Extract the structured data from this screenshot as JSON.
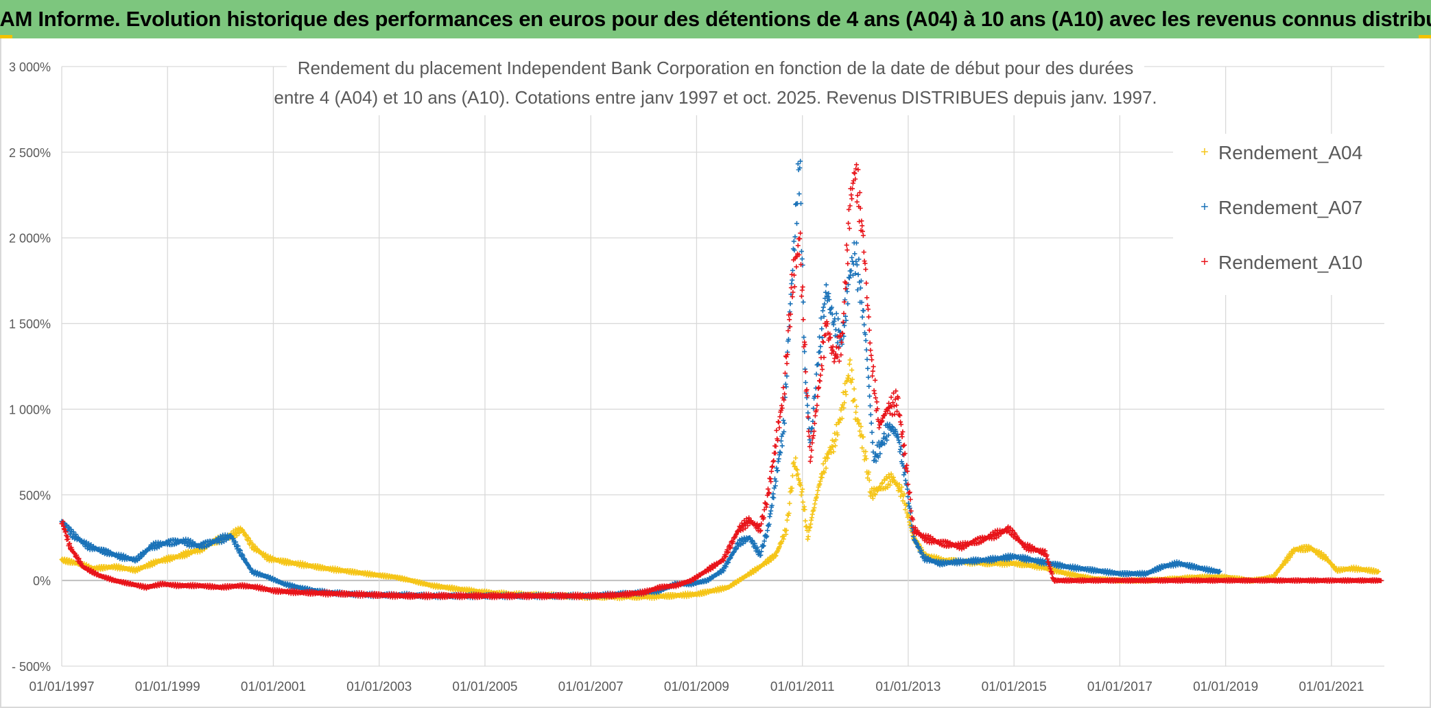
{
  "banner": {
    "title": "ADAM Informe. Evolution historique des performances en euros pour des détentions de 4 ans (A04) à 10 ans (A10) avec les revenus connus distribués"
  },
  "colors": {
    "banner_bg": "#7dc67e",
    "A04": "#f5c518",
    "A07": "#1a72b8",
    "A10": "#e8141a",
    "grid": "#d9d9d9",
    "text": "#595959"
  },
  "chart_data": {
    "type": "scatter",
    "title_lines": [
      "Rendement du placement Independent Bank Corporation en fonction de la date de début pour des durées",
      "entre 4 (A04) et 10 ans (A10). Cotations entre janv 1997 et oct. 2025. Revenus DISTRIBUES depuis janv. 1997."
    ],
    "x_unit": "year",
    "xlim": [
      1997.0,
      2022.0
    ],
    "ylim": [
      -500,
      3000
    ],
    "y_ticks": [
      {
        "value": 3000,
        "label": "3 000%"
      },
      {
        "value": 2500,
        "label": "2 500%"
      },
      {
        "value": 2000,
        "label": "2 000%"
      },
      {
        "value": 1500,
        "label": "1 500%"
      },
      {
        "value": 1000,
        "label": "1 000%"
      },
      {
        "value": 500,
        "label": "500%"
      },
      {
        "value": 0,
        "label": "0%"
      },
      {
        "value": -500,
        "label": "- 500%"
      }
    ],
    "x_ticks": [
      {
        "value": 1997,
        "label": "01/01/1997"
      },
      {
        "value": 1999,
        "label": "01/01/1999"
      },
      {
        "value": 2001,
        "label": "01/01/2001"
      },
      {
        "value": 2003,
        "label": "01/01/2003"
      },
      {
        "value": 2005,
        "label": "01/01/2005"
      },
      {
        "value": 2007,
        "label": "01/01/2007"
      },
      {
        "value": 2009,
        "label": "01/01/2009"
      },
      {
        "value": 2011,
        "label": "01/01/2011"
      },
      {
        "value": 2013,
        "label": "01/01/2013"
      },
      {
        "value": 2015,
        "label": "01/01/2015"
      },
      {
        "value": 2017,
        "label": "01/01/2017"
      },
      {
        "value": 2019,
        "label": "01/01/2019"
      },
      {
        "value": 2021,
        "label": "01/01/2021"
      }
    ],
    "grid": true,
    "legend_position": "top-right",
    "series": [
      {
        "name": "Rendement_A04",
        "marker": "+",
        "points": [
          [
            1997.0,
            120
          ],
          [
            1997.3,
            100
          ],
          [
            1997.6,
            70
          ],
          [
            1998.0,
            80
          ],
          [
            1998.4,
            60
          ],
          [
            1998.8,
            110
          ],
          [
            1999.2,
            140
          ],
          [
            1999.6,
            180
          ],
          [
            1999.9,
            230
          ],
          [
            2000.2,
            260
          ],
          [
            2000.4,
            300
          ],
          [
            2000.6,
            200
          ],
          [
            2000.9,
            130
          ],
          [
            2001.2,
            110
          ],
          [
            2001.6,
            90
          ],
          [
            2002.0,
            70
          ],
          [
            2002.5,
            50
          ],
          [
            2003.0,
            30
          ],
          [
            2003.3,
            20
          ],
          [
            2003.6,
            0
          ],
          [
            2004.0,
            -30
          ],
          [
            2004.5,
            -50
          ],
          [
            2005.0,
            -70
          ],
          [
            2005.5,
            -80
          ],
          [
            2006.0,
            -85
          ],
          [
            2006.5,
            -90
          ],
          [
            2007.0,
            -95
          ],
          [
            2007.5,
            -95
          ],
          [
            2008.0,
            -95
          ],
          [
            2008.5,
            -90
          ],
          [
            2009.0,
            -80
          ],
          [
            2009.3,
            -60
          ],
          [
            2009.6,
            -40
          ],
          [
            2009.9,
            20
          ],
          [
            2010.2,
            80
          ],
          [
            2010.5,
            150
          ],
          [
            2010.7,
            300
          ],
          [
            2010.85,
            700
          ],
          [
            2011.0,
            500
          ],
          [
            2011.1,
            250
          ],
          [
            2011.2,
            400
          ],
          [
            2011.35,
            600
          ],
          [
            2011.5,
            750
          ],
          [
            2011.6,
            800
          ],
          [
            2011.75,
            1000
          ],
          [
            2011.9,
            1250
          ],
          [
            2012.0,
            1000
          ],
          [
            2012.15,
            800
          ],
          [
            2012.3,
            500
          ],
          [
            2012.5,
            550
          ],
          [
            2012.7,
            600
          ],
          [
            2012.9,
            500
          ],
          [
            2013.1,
            250
          ],
          [
            2013.3,
            150
          ],
          [
            2013.6,
            120
          ],
          [
            2014.0,
            110
          ],
          [
            2014.5,
            100
          ],
          [
            2015.0,
            100
          ],
          [
            2015.5,
            80
          ],
          [
            2016.0,
            40
          ],
          [
            2016.5,
            10
          ],
          [
            2017.0,
            0
          ],
          [
            2017.5,
            0
          ],
          [
            2018.0,
            10
          ],
          [
            2018.5,
            20
          ],
          [
            2019.0,
            20
          ],
          [
            2019.5,
            0
          ],
          [
            2019.9,
            20
          ],
          [
            2020.1,
            100
          ],
          [
            2020.3,
            180
          ],
          [
            2020.6,
            190
          ],
          [
            2020.9,
            130
          ],
          [
            2021.1,
            60
          ],
          [
            2021.4,
            70
          ],
          [
            2021.7,
            60
          ],
          [
            2021.9,
            50
          ]
        ]
      },
      {
        "name": "Rendement_A07",
        "marker": "+",
        "points": [
          [
            1997.0,
            350
          ],
          [
            1997.2,
            270
          ],
          [
            1997.5,
            200
          ],
          [
            1997.8,
            170
          ],
          [
            1998.1,
            140
          ],
          [
            1998.4,
            120
          ],
          [
            1998.7,
            200
          ],
          [
            1999.0,
            220
          ],
          [
            1999.3,
            230
          ],
          [
            1999.6,
            200
          ],
          [
            1999.9,
            230
          ],
          [
            2000.2,
            260
          ],
          [
            2000.4,
            150
          ],
          [
            2000.6,
            50
          ],
          [
            2000.9,
            20
          ],
          [
            2001.2,
            -20
          ],
          [
            2001.6,
            -50
          ],
          [
            2002.0,
            -70
          ],
          [
            2002.5,
            -80
          ],
          [
            2003.0,
            -85
          ],
          [
            2003.5,
            -85
          ],
          [
            2004.0,
            -90
          ],
          [
            2004.5,
            -90
          ],
          [
            2005.0,
            -90
          ],
          [
            2005.5,
            -90
          ],
          [
            2006.0,
            -90
          ],
          [
            2006.5,
            -90
          ],
          [
            2007.0,
            -90
          ],
          [
            2007.5,
            -80
          ],
          [
            2008.0,
            -70
          ],
          [
            2008.3,
            -60
          ],
          [
            2008.6,
            -20
          ],
          [
            2008.9,
            -20
          ],
          [
            2009.2,
            0
          ],
          [
            2009.5,
            60
          ],
          [
            2009.8,
            220
          ],
          [
            2010.0,
            250
          ],
          [
            2010.2,
            150
          ],
          [
            2010.35,
            300
          ],
          [
            2010.5,
            600
          ],
          [
            2010.65,
            900
          ],
          [
            2010.75,
            1500
          ],
          [
            2010.85,
            2000
          ],
          [
            2010.95,
            2450
          ],
          [
            2011.05,
            1200
          ],
          [
            2011.15,
            800
          ],
          [
            2011.3,
            1300
          ],
          [
            2011.45,
            1700
          ],
          [
            2011.6,
            1500
          ],
          [
            2011.75,
            1400
          ],
          [
            2011.9,
            1800
          ],
          [
            2012.0,
            1900
          ],
          [
            2012.1,
            1700
          ],
          [
            2012.2,
            1400
          ],
          [
            2012.35,
            700
          ],
          [
            2012.5,
            800
          ],
          [
            2012.65,
            900
          ],
          [
            2012.8,
            850
          ],
          [
            2012.95,
            600
          ],
          [
            2013.1,
            250
          ],
          [
            2013.3,
            130
          ],
          [
            2013.6,
            100
          ],
          [
            2014.0,
            110
          ],
          [
            2014.5,
            120
          ],
          [
            2015.0,
            140
          ],
          [
            2015.5,
            110
          ],
          [
            2016.0,
            80
          ],
          [
            2016.5,
            60
          ],
          [
            2017.0,
            40
          ],
          [
            2017.5,
            40
          ],
          [
            2017.8,
            80
          ],
          [
            2018.1,
            100
          ],
          [
            2018.4,
            80
          ],
          [
            2018.7,
            60
          ],
          [
            2018.9,
            50
          ]
        ]
      },
      {
        "name": "Rendement_A10",
        "marker": "+",
        "points": [
          [
            1997.0,
            350
          ],
          [
            1997.15,
            200
          ],
          [
            1997.4,
            80
          ],
          [
            1997.7,
            30
          ],
          [
            1998.0,
            0
          ],
          [
            1998.3,
            -20
          ],
          [
            1998.6,
            -40
          ],
          [
            1998.9,
            -20
          ],
          [
            1999.2,
            -30
          ],
          [
            1999.6,
            -30
          ],
          [
            2000.0,
            -40
          ],
          [
            2000.4,
            -30
          ],
          [
            2000.7,
            -40
          ],
          [
            2001.0,
            -60
          ],
          [
            2001.5,
            -70
          ],
          [
            2002.0,
            -75
          ],
          [
            2002.5,
            -80
          ],
          [
            2003.0,
            -85
          ],
          [
            2003.5,
            -90
          ],
          [
            2004.0,
            -90
          ],
          [
            2004.5,
            -90
          ],
          [
            2005.0,
            -90
          ],
          [
            2005.5,
            -90
          ],
          [
            2006.0,
            -90
          ],
          [
            2006.5,
            -90
          ],
          [
            2007.0,
            -90
          ],
          [
            2007.5,
            -85
          ],
          [
            2008.0,
            -70
          ],
          [
            2008.3,
            -40
          ],
          [
            2008.6,
            -30
          ],
          [
            2008.9,
            0
          ],
          [
            2009.2,
            60
          ],
          [
            2009.5,
            120
          ],
          [
            2009.8,
            300
          ],
          [
            2010.0,
            350
          ],
          [
            2010.2,
            300
          ],
          [
            2010.35,
            500
          ],
          [
            2010.5,
            800
          ],
          [
            2010.65,
            1100
          ],
          [
            2010.8,
            1700
          ],
          [
            2010.95,
            2000
          ],
          [
            2011.05,
            1300
          ],
          [
            2011.15,
            700
          ],
          [
            2011.3,
            1100
          ],
          [
            2011.45,
            1500
          ],
          [
            2011.6,
            1300
          ],
          [
            2011.75,
            1400
          ],
          [
            2011.9,
            2200
          ],
          [
            2012.0,
            2400
          ],
          [
            2012.15,
            2000
          ],
          [
            2012.3,
            1300
          ],
          [
            2012.45,
            900
          ],
          [
            2012.6,
            1000
          ],
          [
            2012.8,
            1050
          ],
          [
            2012.95,
            700
          ],
          [
            2013.1,
            300
          ],
          [
            2013.3,
            250
          ],
          [
            2013.6,
            220
          ],
          [
            2014.0,
            200
          ],
          [
            2014.5,
            250
          ],
          [
            2014.9,
            300
          ],
          [
            2015.2,
            200
          ],
          [
            2015.6,
            160
          ],
          [
            2015.75,
            0
          ],
          [
            2016.5,
            0
          ],
          [
            2017.5,
            0
          ],
          [
            2018.5,
            0
          ],
          [
            2019.5,
            0
          ],
          [
            2020.5,
            0
          ],
          [
            2021.5,
            0
          ],
          [
            2021.95,
            0
          ]
        ]
      }
    ]
  }
}
